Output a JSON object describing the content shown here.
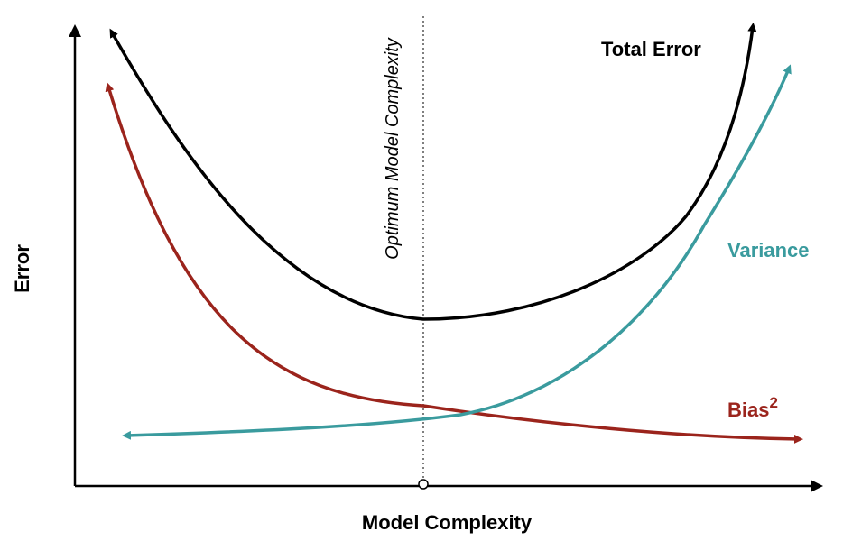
{
  "title": "",
  "axes": {
    "x_label": "Model Complexity",
    "y_label": "Error"
  },
  "optimum_label": "Optimum Model Complexity",
  "curves": {
    "total_error": {
      "label": "Total Error",
      "color": "#000000"
    },
    "variance": {
      "label": "Variance",
      "color": "#3a9b9e"
    },
    "bias": {
      "label": "Bias",
      "superscript": "2",
      "color": "#9b241c"
    }
  },
  "colors": {
    "axis": "#000000",
    "optimum_line": "#555555"
  }
}
